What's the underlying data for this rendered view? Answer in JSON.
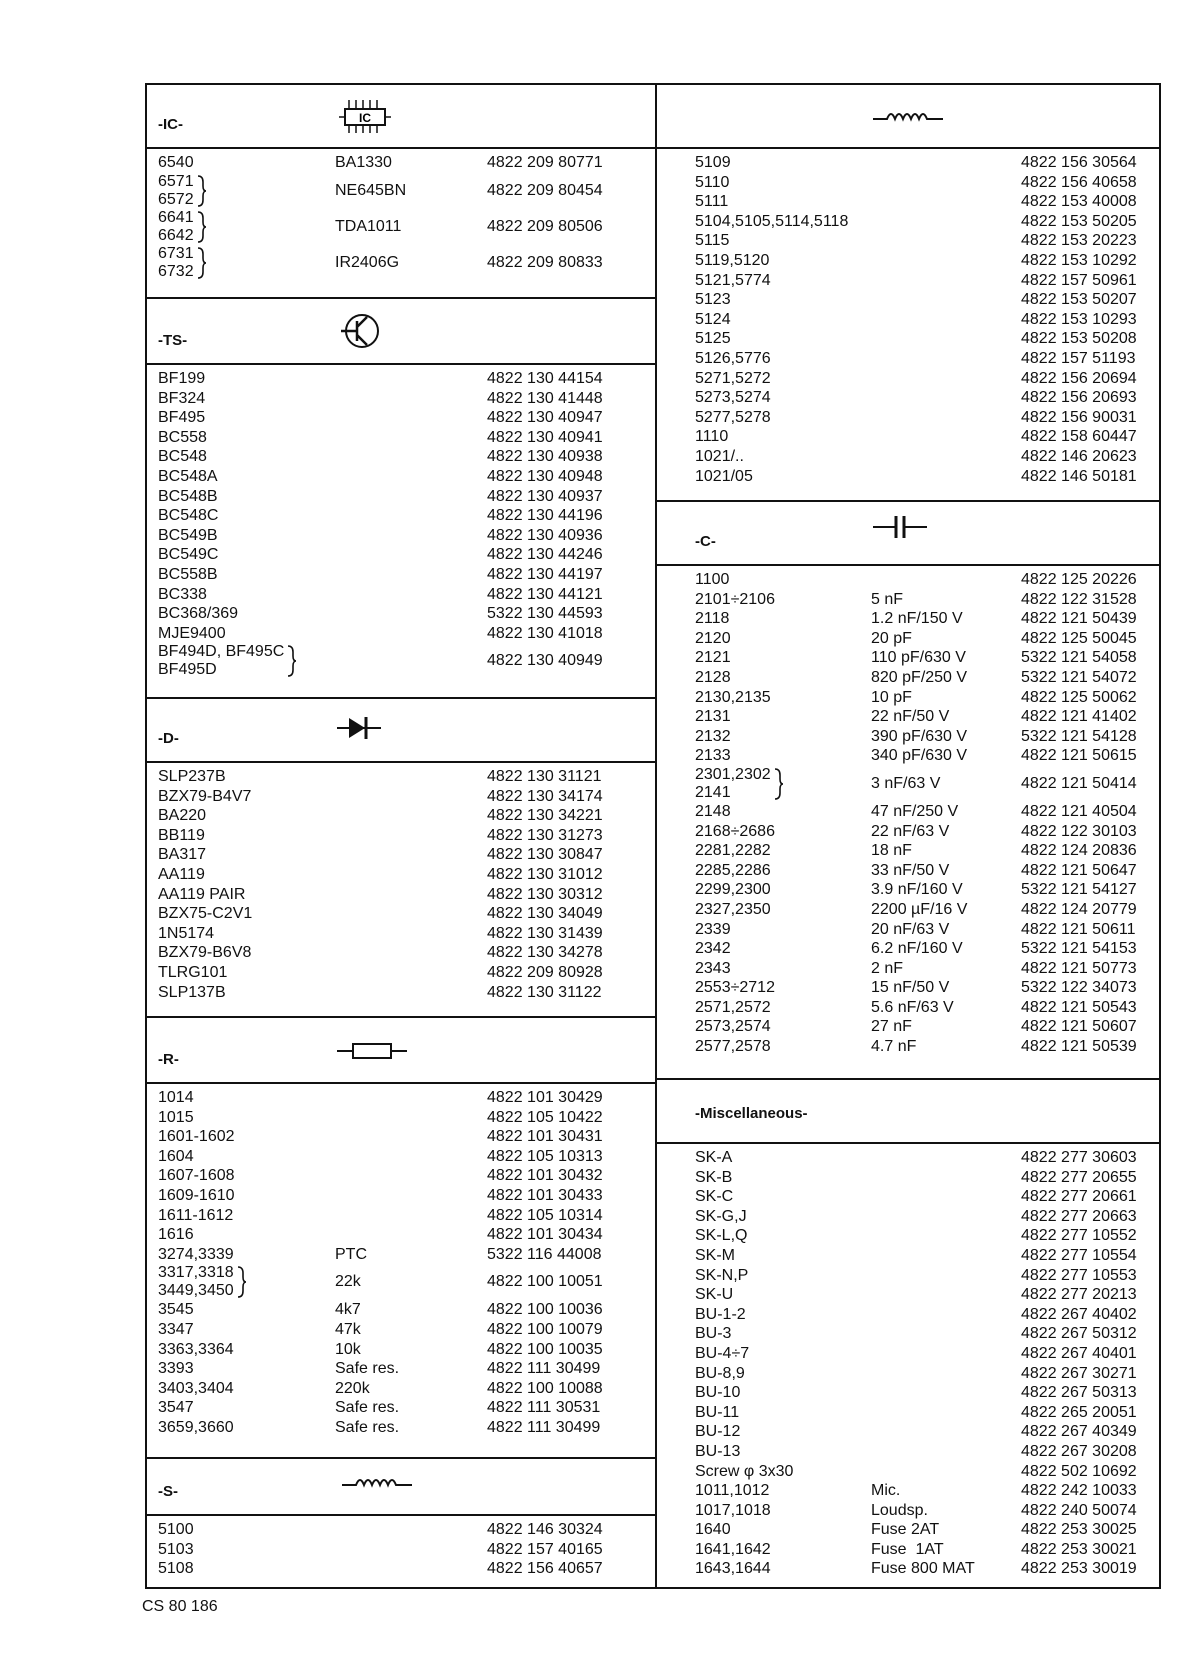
{
  "left": [
    {
      "title": "-IC-",
      "rows": [
        {
          "ref": "6540",
          "desc": "BA1330",
          "part": "4822 209 80771"
        },
        {
          "refs": [
            "6571",
            "6572"
          ],
          "desc": "NE645BN",
          "part": "4822 209 80454"
        },
        {
          "refs": [
            "6641",
            "6642"
          ],
          "desc": "TDA1011",
          "part": "4822 209 80506"
        },
        {
          "refs": [
            "6731",
            "6732"
          ],
          "desc": "IR2406G",
          "part": "4822 209 80833"
        }
      ]
    },
    {
      "title": "-TS-",
      "rows": [
        {
          "ref": "BF199",
          "part": "4822 130 44154"
        },
        {
          "ref": "BF324",
          "part": "4822 130 41448"
        },
        {
          "ref": "BF495",
          "part": "4822 130 40947"
        },
        {
          "ref": "BC558",
          "part": "4822 130 40941"
        },
        {
          "ref": "BC548",
          "part": "4822 130 40938"
        },
        {
          "ref": "BC548A",
          "part": "4822 130 40948"
        },
        {
          "ref": "BC548B",
          "part": "4822 130 40937"
        },
        {
          "ref": "BC548C",
          "part": "4822 130 44196"
        },
        {
          "ref": "BC549B",
          "part": "4822 130 40936"
        },
        {
          "ref": "BC549C",
          "part": "4822 130 44246"
        },
        {
          "ref": "BC558B",
          "part": "4822 130 44197"
        },
        {
          "ref": "BC338",
          "part": "4822 130 44121"
        },
        {
          "ref": "BC368/369",
          "part": "5322 130 44593"
        },
        {
          "ref": "MJE9400",
          "part": "4822 130 41018"
        },
        {
          "refs": [
            "BF494D, BF495C",
            "BF495D"
          ],
          "part": "4822 130 40949"
        }
      ]
    },
    {
      "title": "-D-",
      "rows": [
        {
          "ref": "SLP237B",
          "part": "4822 130 31121"
        },
        {
          "ref": "BZX79-B4V7",
          "part": "4822 130 34174"
        },
        {
          "ref": "BA220",
          "part": "4822 130 34221"
        },
        {
          "ref": "BB119",
          "part": "4822 130 31273"
        },
        {
          "ref": "BA317",
          "part": "4822 130 30847"
        },
        {
          "ref": "AA119",
          "part": "4822 130 31012"
        },
        {
          "ref": "AA119 PAIR",
          "part": "4822 130 30312"
        },
        {
          "ref": "BZX75-C2V1",
          "part": "4822 130 34049"
        },
        {
          "ref": "1N5174",
          "part": "4822 130 31439"
        },
        {
          "ref": "BZX79-B6V8",
          "part": "4822 130 34278"
        },
        {
          "ref": "TLRG101",
          "part": "4822 209 80928"
        },
        {
          "ref": "SLP137B",
          "part": "4822 130 31122"
        }
      ]
    },
    {
      "title": "-R-",
      "rows": [
        {
          "ref": "1014",
          "part": "4822 101 30429"
        },
        {
          "ref": "1015",
          "part": "4822 105 10422"
        },
        {
          "ref": "1601-1602",
          "part": "4822 101 30431"
        },
        {
          "ref": "1604",
          "part": "4822 105 10313"
        },
        {
          "ref": "1607-1608",
          "part": "4822 101 30432"
        },
        {
          "ref": "1609-1610",
          "part": "4822 101 30433"
        },
        {
          "ref": "1611-1612",
          "part": "4822 105 10314"
        },
        {
          "ref": "1616",
          "part": "4822 101 30434"
        },
        {
          "ref": "3274,3339",
          "desc": "PTC",
          "part": "5322 116 44008"
        },
        {
          "refs": [
            "3317,3318",
            "3449,3450"
          ],
          "desc": "22k",
          "part": "4822 100 10051"
        },
        {
          "ref": "3545",
          "desc": "4k7",
          "part": "4822 100 10036"
        },
        {
          "ref": "3347",
          "desc": "47k",
          "part": "4822 100 10079"
        },
        {
          "ref": "3363,3364",
          "desc": "10k",
          "part": "4822 100 10035"
        },
        {
          "ref": "3393",
          "desc": "Safe res.",
          "part": "4822 111 30499"
        },
        {
          "ref": "3403,3404",
          "desc": "220k",
          "part": "4822 100 10088"
        },
        {
          "ref": "3547",
          "desc": "Safe res.",
          "part": "4822 111 30531"
        },
        {
          "ref": "3659,3660",
          "desc": "Safe res.",
          "part": "4822 111 30499"
        }
      ]
    },
    {
      "title": "-S-",
      "rows": [
        {
          "ref": "5100",
          "part": "4822 146 30324"
        },
        {
          "ref": "5103",
          "part": "4822 157 40165"
        },
        {
          "ref": "5108",
          "part": "4822 156 40657"
        }
      ]
    }
  ],
  "right": [
    {
      "rows": [
        {
          "ref": "5109",
          "part": "4822 156 30564"
        },
        {
          "ref": "5110",
          "part": "4822 156 40658"
        },
        {
          "ref": "5111",
          "part": "4822 153 40008"
        },
        {
          "ref": "5104,5105,5114,5118",
          "part": "4822 153 50205"
        },
        {
          "ref": "5115",
          "part": "4822 153 20223"
        },
        {
          "ref": "5119,5120",
          "part": "4822 153 10292"
        },
        {
          "ref": "5121,5774",
          "part": "4822 157 50961"
        },
        {
          "ref": "5123",
          "part": "4822 153 50207"
        },
        {
          "ref": "5124",
          "part": "4822 153 10293"
        },
        {
          "ref": "5125",
          "part": "4822 153 50208"
        },
        {
          "ref": "5126,5776",
          "part": "4822 157 51193"
        },
        {
          "ref": "5271,5272",
          "part": "4822 156 20694"
        },
        {
          "ref": "5273,5274",
          "part": "4822 156 20693"
        },
        {
          "ref": "5277,5278",
          "part": "4822 156 90031"
        },
        {
          "ref": "1110",
          "part": "4822 158 60447"
        },
        {
          "ref": "1021/..",
          "part": "4822 146 20623"
        },
        {
          "ref": "1021/05",
          "part": "4822 146 50181"
        }
      ]
    },
    {
      "title": "-C-",
      "rows": [
        {
          "ref": "1100",
          "part": "4822 125 20226"
        },
        {
          "ref": "2101÷2106",
          "desc": "5 nF",
          "part": "4822 122 31528"
        },
        {
          "ref": "2118",
          "desc": "1.2 nF/150 V",
          "part": "4822 121 50439"
        },
        {
          "ref": "2120",
          "desc": "20 pF",
          "part": "4822 125 50045"
        },
        {
          "ref": "2121",
          "desc": "110 pF/630 V",
          "part": "5322 121 54058"
        },
        {
          "ref": "2128",
          "desc": "820 pF/250 V",
          "part": "5322 121 54072"
        },
        {
          "ref": "2130,2135",
          "desc": "10 pF",
          "part": "4822 125 50062"
        },
        {
          "ref": "2131",
          "desc": "22 nF/50 V",
          "part": "4822 121 41402"
        },
        {
          "ref": "2132",
          "desc": "390 pF/630 V",
          "part": "5322 121 54128"
        },
        {
          "ref": "2133",
          "desc": "340 pF/630 V",
          "part": "4822 121 50615"
        },
        {
          "refs": [
            "2301,2302",
            "2141"
          ],
          "desc": "3 nF/63 V",
          "part": "4822 121 50414"
        },
        {
          "ref": "2148",
          "desc": "47 nF/250 V",
          "part": "4822 121 40504"
        },
        {
          "ref": "2168÷2686",
          "desc": "22 nF/63 V",
          "part": "4822 122 30103"
        },
        {
          "ref": "2281,2282",
          "desc": "18 nF",
          "part": "4822 124 20836"
        },
        {
          "ref": "2285,2286",
          "desc": "33 nF/50 V",
          "part": "4822 121 50647"
        },
        {
          "ref": "2299,2300",
          "desc": "3.9 nF/160 V",
          "part": "5322 121 54127"
        },
        {
          "ref": "2327,2350",
          "desc": "2200 µF/16 V",
          "part": "4822 124 20779"
        },
        {
          "ref": "2339",
          "desc": "20 nF/63 V",
          "part": "4822 121 50611"
        },
        {
          "ref": "2342",
          "desc": "6.2 nF/160 V",
          "part": "5322 121 54153"
        },
        {
          "ref": "2343",
          "desc": "2 nF",
          "part": "4822 121 50773"
        },
        {
          "ref": "2553÷2712",
          "desc": "15 nF/50 V",
          "part": "5322 122 34073"
        },
        {
          "ref": "2571,2572",
          "desc": "5.6 nF/63 V",
          "part": "4822 121 50543"
        },
        {
          "ref": "2573,2574",
          "desc": "27 nF",
          "part": "4822 121 50607"
        },
        {
          "ref": "2577,2578",
          "desc": "4.7 nF",
          "part": "4822 121 50539"
        }
      ]
    },
    {
      "title": "-Miscellaneous-",
      "rows": [
        {
          "ref": "SK-A",
          "part": "4822 277 30603"
        },
        {
          "ref": "SK-B",
          "part": "4822 277 20655"
        },
        {
          "ref": "SK-C",
          "part": "4822 277 20661"
        },
        {
          "ref": "SK-G,J",
          "part": "4822 277 20663"
        },
        {
          "ref": "SK-L,Q",
          "part": "4822 277 10552"
        },
        {
          "ref": "SK-M",
          "part": "4822 277 10554"
        },
        {
          "ref": "SK-N,P",
          "part": "4822 277 10553"
        },
        {
          "ref": "SK-U",
          "part": "4822 277 20213"
        },
        {
          "ref": "BU-1-2",
          "part": "4822 267 40402"
        },
        {
          "ref": "BU-3",
          "part": "4822 267 50312"
        },
        {
          "ref": "BU-4÷7",
          "part": "4822 267 40401"
        },
        {
          "ref": "BU-8,9",
          "part": "4822 267 30271"
        },
        {
          "ref": "BU-10",
          "part": "4822 267 50313"
        },
        {
          "ref": "BU-11",
          "part": "4822 265 20051"
        },
        {
          "ref": "BU-12",
          "part": "4822 267 40349"
        },
        {
          "ref": "BU-13",
          "part": "4822 267 30208"
        },
        {
          "ref": "Screw φ 3x30",
          "part": "4822 502 10692"
        },
        {
          "ref": "1011,1012",
          "desc": "Mic.",
          "part": "4822 242 10033"
        },
        {
          "ref": "1017,1018",
          "desc": "Loudsp.",
          "part": "4822 240 50074"
        },
        {
          "ref": "1640",
          "desc": "Fuse 2AT",
          "part": "4822 253 30025"
        },
        {
          "ref": "1641,1642",
          "desc": "Fuse  1AT",
          "part": "4822 253 30021"
        },
        {
          "ref": "1643,1644",
          "desc": "Fuse 800 MAT",
          "part": "4822 253 30019"
        }
      ]
    }
  ],
  "footer": "CS 80 186"
}
